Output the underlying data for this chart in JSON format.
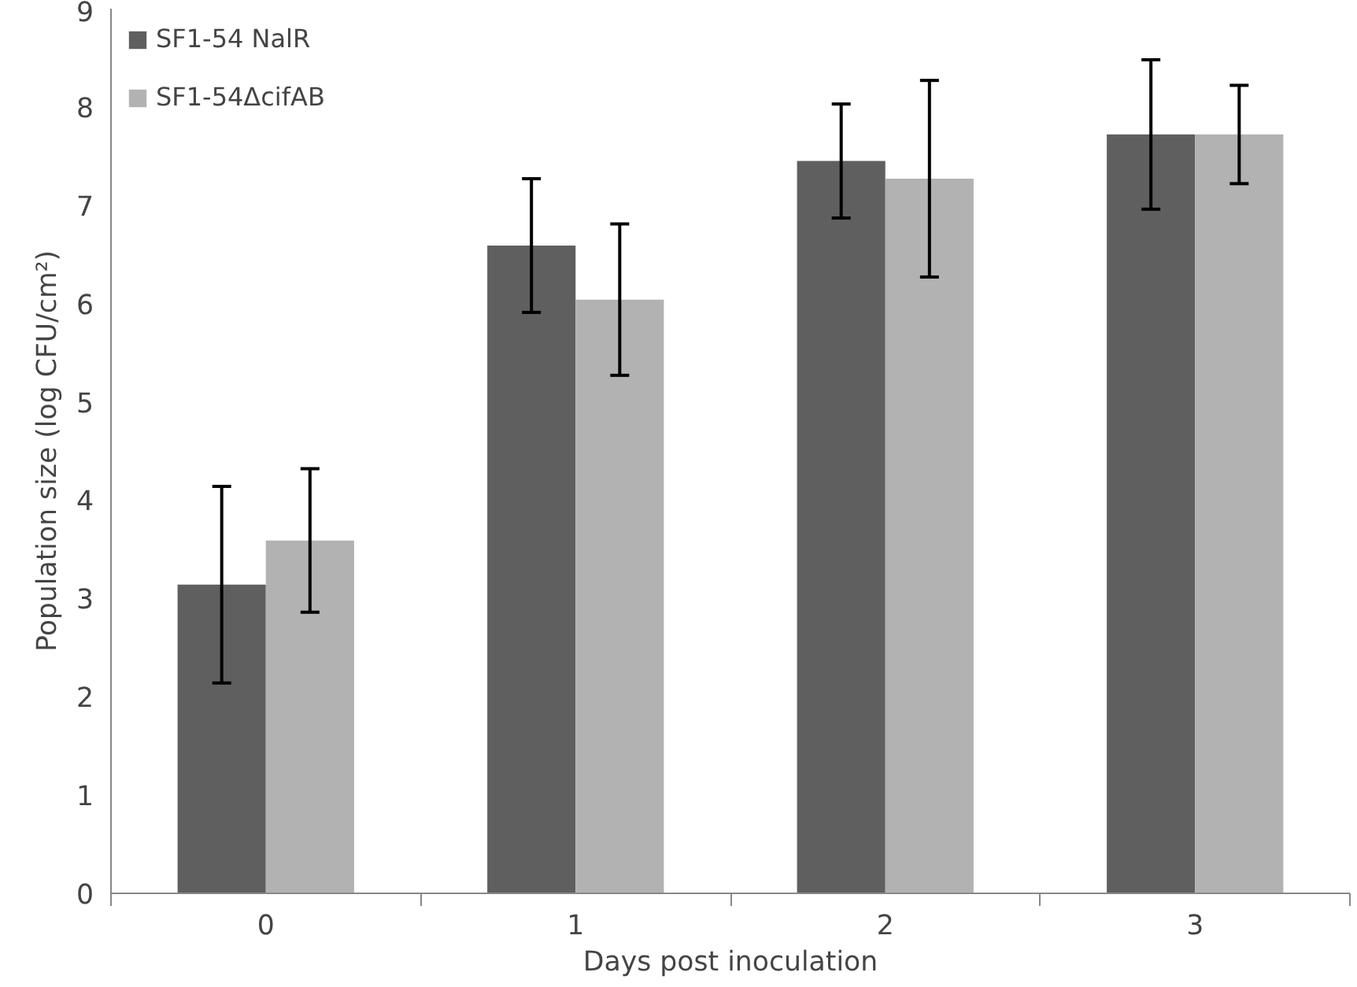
{
  "chart_data": {
    "type": "bar",
    "xlabel": "Days post inoculation",
    "ylabel": "Population size (log CFU/cm²)",
    "categories": [
      "0",
      "1",
      "2",
      "3"
    ],
    "series": [
      {
        "name": "SF1-54 NalR",
        "color": "#5f5f5f",
        "values": [
          3.14,
          6.59,
          7.45,
          7.72
        ],
        "errors": [
          1.0,
          0.68,
          0.58,
          0.76
        ]
      },
      {
        "name": "SF1-54ΔcifAB",
        "color": "#b2b2b2",
        "values": [
          3.59,
          6.04,
          7.27,
          7.72
        ],
        "errors": [
          0.73,
          0.77,
          1.0,
          0.5
        ]
      }
    ],
    "ylim": [
      0,
      9
    ],
    "yticks": [
      0,
      1,
      2,
      3,
      4,
      5,
      6,
      7,
      8,
      9
    ],
    "grid": false,
    "legend": "top left"
  }
}
